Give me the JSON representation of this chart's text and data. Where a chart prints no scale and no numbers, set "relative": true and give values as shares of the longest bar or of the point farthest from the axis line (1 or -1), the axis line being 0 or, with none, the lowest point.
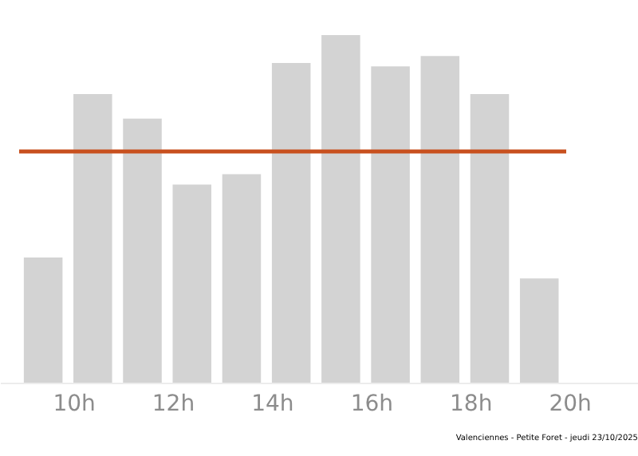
{
  "chart_data": {
    "type": "bar",
    "relative": true,
    "x": [
      9.39,
      10.39,
      11.39,
      12.39,
      13.39,
      14.39,
      15.39,
      16.39,
      17.39,
      18.39,
      19.39
    ],
    "values": [
      0.36,
      0.83,
      0.76,
      0.57,
      0.6,
      0.92,
      1.0,
      0.91,
      0.94,
      0.83,
      0.3
    ],
    "color": "#d3d3d3",
    "xlim": [
      8.52,
      21.38
    ],
    "xticks": [
      {
        "value": 10,
        "label": "10h"
      },
      {
        "value": 12,
        "label": "12h"
      },
      {
        "value": 14,
        "label": "14h"
      },
      {
        "value": 16,
        "label": "16h"
      },
      {
        "value": 18,
        "label": "18h"
      },
      {
        "value": 20,
        "label": "20h"
      }
    ],
    "ref_lines": [
      {
        "axis": "y",
        "value": 0.665,
        "color": "#c8501e"
      }
    ],
    "annotations": [
      "Valenciennes - Petite Foret - jeudi 23/10/2025"
    ],
    "grid": false,
    "legend": false
  }
}
